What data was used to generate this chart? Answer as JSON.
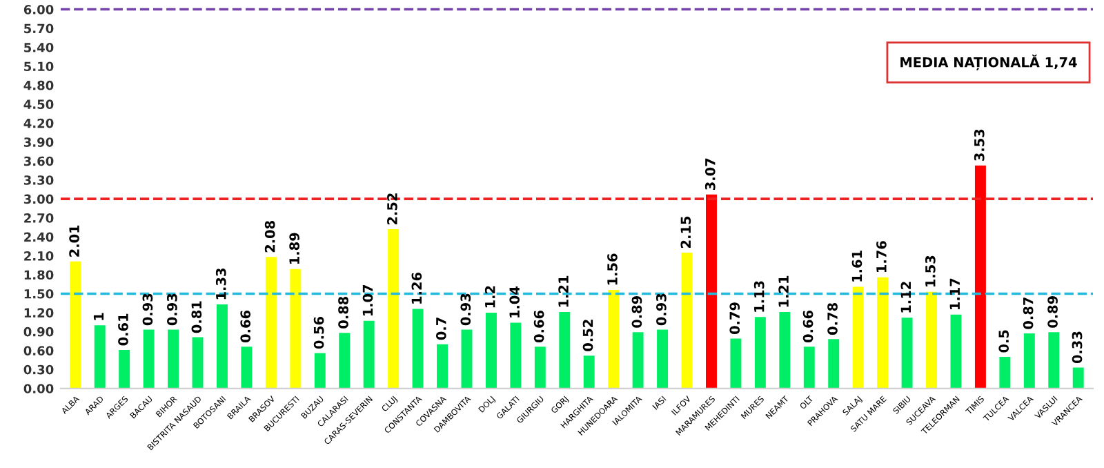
{
  "chart_data": {
    "type": "bar",
    "categories": [
      "ALBA",
      "ARAD",
      "ARGES",
      "BACAU",
      "BIHOR",
      "BISTRITA NASAUD",
      "BOTOSANI",
      "BRAILA",
      "BRASOV",
      "BUCURESTI",
      "BUZAU",
      "CALARASI",
      "CARAS-SEVERIN",
      "CLUJ",
      "CONSTANTA",
      "COVASNA",
      "DAMBOVITA",
      "DOLJ",
      "GALATI",
      "GIURGIU",
      "GORJ",
      "HARGHITA",
      "HUNEDOARA",
      "IALOMITA",
      "IASI",
      "ILFOV",
      "MARAMURES",
      "MEHEDINTI",
      "MURES",
      "NEAMT",
      "OLT",
      "PRAHOVA",
      "SALAJ",
      "SATU MARE",
      "SIBIU",
      "SUCEAVA",
      "TELEORMAN",
      "TIMIS",
      "TULCEA",
      "VALCEA",
      "VASLUI",
      "VRANCEA"
    ],
    "values": [
      2.01,
      1,
      0.61,
      0.93,
      0.93,
      0.81,
      1.33,
      0.66,
      2.08,
      1.89,
      0.56,
      0.88,
      1.07,
      2.52,
      1.26,
      0.7,
      0.93,
      1.2,
      1.04,
      0.66,
      1.21,
      0.52,
      1.56,
      0.89,
      0.93,
      2.15,
      3.07,
      0.79,
      1.13,
      1.21,
      0.66,
      0.78,
      1.61,
      1.76,
      1.12,
      1.53,
      1.17,
      3.53,
      0.5,
      0.87,
      0.89,
      0.33
    ],
    "colors": [
      "#ffff00",
      "#00ee66",
      "#00ee66",
      "#00ee66",
      "#00ee66",
      "#00ee66",
      "#00ee66",
      "#00ee66",
      "#ffff00",
      "#ffff00",
      "#00ee66",
      "#00ee66",
      "#00ee66",
      "#ffff00",
      "#00ee66",
      "#00ee66",
      "#00ee66",
      "#00ee66",
      "#00ee66",
      "#00ee66",
      "#00ee66",
      "#00ee66",
      "#ffff00",
      "#00ee66",
      "#00ee66",
      "#ffff00",
      "#ff0000",
      "#00ee66",
      "#00ee66",
      "#00ee66",
      "#00ee66",
      "#00ee66",
      "#ffff00",
      "#ffff00",
      "#00ee66",
      "#ffff00",
      "#00ee66",
      "#ff0000",
      "#00ee66",
      "#00ee66",
      "#00ee66",
      "#00ee66"
    ],
    "data_labels": true,
    "ylim": [
      0,
      6
    ],
    "yticks": [
      {
        "value": 0,
        "label": "0.00"
      },
      {
        "value": 0.3,
        "label": "0.30"
      },
      {
        "value": 0.6,
        "label": "0.60"
      },
      {
        "value": 0.9,
        "label": "0.90"
      },
      {
        "value": 1.2,
        "label": "1.20"
      },
      {
        "value": 1.5,
        "label": "1.50"
      },
      {
        "value": 1.8,
        "label": "1.80"
      },
      {
        "value": 2.1,
        "label": "2.10"
      },
      {
        "value": 2.4,
        "label": "2.40"
      },
      {
        "value": 2.7,
        "label": "2.70"
      },
      {
        "value": 3,
        "label": "3.00"
      },
      {
        "value": 3.3,
        "label": "3.30"
      },
      {
        "value": 3.6,
        "label": "3.60"
      },
      {
        "value": 3.9,
        "label": "3.90"
      },
      {
        "value": 4.2,
        "label": "4.20"
      },
      {
        "value": 4.5,
        "label": "4.50"
      },
      {
        "value": 4.8,
        "label": "4.80"
      },
      {
        "value": 5.1,
        "label": "5.10"
      },
      {
        "value": 5.4,
        "label": "5.40"
      },
      {
        "value": 5.7,
        "label": "5.70"
      },
      {
        "value": 6,
        "label": "6.00"
      }
    ],
    "ref_lines": [
      {
        "axis": "y",
        "value": 1.5,
        "color": "#22bbdd",
        "line_style": "dashed"
      },
      {
        "axis": "y",
        "value": 3,
        "color": "#ee2222",
        "line_style": "dashed"
      },
      {
        "axis": "y",
        "value": 6,
        "color": "#7744aa",
        "line_style": "dashed"
      }
    ],
    "annotations": [
      "MEDIA NAȚIONALĂ 1,74"
    ],
    "grid": false,
    "legend": false
  }
}
